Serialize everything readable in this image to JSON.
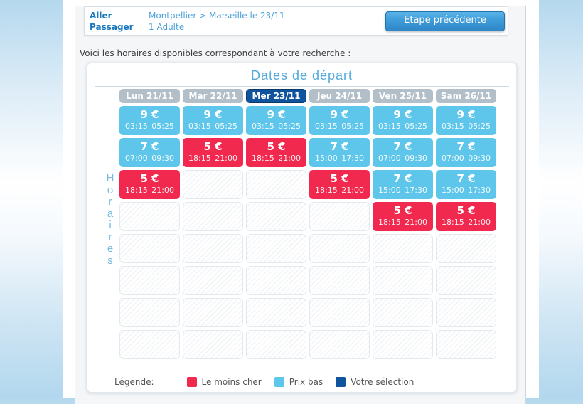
{
  "header": {
    "rows": [
      {
        "label": "Aller",
        "value": "Montpellier > Marseille le 23/11"
      },
      {
        "label": "Passager",
        "value": "1 Adulte"
      }
    ],
    "back_button": "Étape précédente"
  },
  "intro_text": "Voici les horaires disponibles correspondant à votre recherche :",
  "calendar": {
    "title": "Dates de départ",
    "axis_label": "Horaires",
    "days": [
      "Lun 21/11",
      "Mar 22/11",
      "Mer 23/11",
      "Jeu 24/11",
      "Ven 25/11",
      "Sam 26/11"
    ],
    "selected_day_index": 2,
    "selected_day": "Mer 23/11",
    "colors": {
      "low_price": "#5ec6ea",
      "cheapest": "#f1294e",
      "selection": "#0f549c"
    },
    "grid": [
      [
        {
          "type": "low",
          "price": "9 €",
          "depart": "03:15",
          "arrive": "05:25"
        },
        {
          "type": "low",
          "price": "9 €",
          "depart": "03:15",
          "arrive": "05:25"
        },
        {
          "type": "low",
          "price": "9 €",
          "depart": "03:15",
          "arrive": "05:25"
        },
        {
          "type": "low",
          "price": "9 €",
          "depart": "03:15",
          "arrive": "05:25"
        },
        {
          "type": "low",
          "price": "9 €",
          "depart": "03:15",
          "arrive": "05:25"
        },
        {
          "type": "low",
          "price": "9 €",
          "depart": "03:15",
          "arrive": "05:25"
        }
      ],
      [
        {
          "type": "low",
          "price": "7 €",
          "depart": "07:00",
          "arrive": "09:30"
        },
        {
          "type": "cheapest",
          "price": "5 €",
          "depart": "18:15",
          "arrive": "21:00"
        },
        {
          "type": "cheapest",
          "price": "5 €",
          "depart": "18:15",
          "arrive": "21:00"
        },
        {
          "type": "low",
          "price": "7 €",
          "depart": "15:00",
          "arrive": "17:30"
        },
        {
          "type": "low",
          "price": "7 €",
          "depart": "07:00",
          "arrive": "09:30"
        },
        {
          "type": "low",
          "price": "7 €",
          "depart": "07:00",
          "arrive": "09:30"
        }
      ],
      [
        {
          "type": "cheapest",
          "price": "5 €",
          "depart": "18:15",
          "arrive": "21:00"
        },
        {
          "type": "empty"
        },
        {
          "type": "empty"
        },
        {
          "type": "cheapest",
          "price": "5 €",
          "depart": "18:15",
          "arrive": "21:00"
        },
        {
          "type": "low",
          "price": "7 €",
          "depart": "15:00",
          "arrive": "17:30"
        },
        {
          "type": "low",
          "price": "7 €",
          "depart": "15:00",
          "arrive": "17:30"
        }
      ],
      [
        {
          "type": "empty"
        },
        {
          "type": "empty"
        },
        {
          "type": "empty"
        },
        {
          "type": "empty"
        },
        {
          "type": "cheapest",
          "price": "5 €",
          "depart": "18:15",
          "arrive": "21:00"
        },
        {
          "type": "cheapest",
          "price": "5 €",
          "depart": "18:15",
          "arrive": "21:00"
        }
      ],
      [
        {
          "type": "empty"
        },
        {
          "type": "empty"
        },
        {
          "type": "empty"
        },
        {
          "type": "empty"
        },
        {
          "type": "empty"
        },
        {
          "type": "empty"
        }
      ],
      [
        {
          "type": "empty"
        },
        {
          "type": "empty"
        },
        {
          "type": "empty"
        },
        {
          "type": "empty"
        },
        {
          "type": "empty"
        },
        {
          "type": "empty"
        }
      ],
      [
        {
          "type": "empty"
        },
        {
          "type": "empty"
        },
        {
          "type": "empty"
        },
        {
          "type": "empty"
        },
        {
          "type": "empty"
        },
        {
          "type": "empty"
        }
      ],
      [
        {
          "type": "empty"
        },
        {
          "type": "empty"
        },
        {
          "type": "empty"
        },
        {
          "type": "empty"
        },
        {
          "type": "empty"
        },
        {
          "type": "empty"
        }
      ]
    ]
  },
  "legend": {
    "label": "Légende:",
    "items": [
      {
        "label": "Le moins cher",
        "color": "#f1294e"
      },
      {
        "label": "Prix bas",
        "color": "#5ec6ea"
      },
      {
        "label": "Votre sélection",
        "color": "#0f549c"
      }
    ]
  }
}
